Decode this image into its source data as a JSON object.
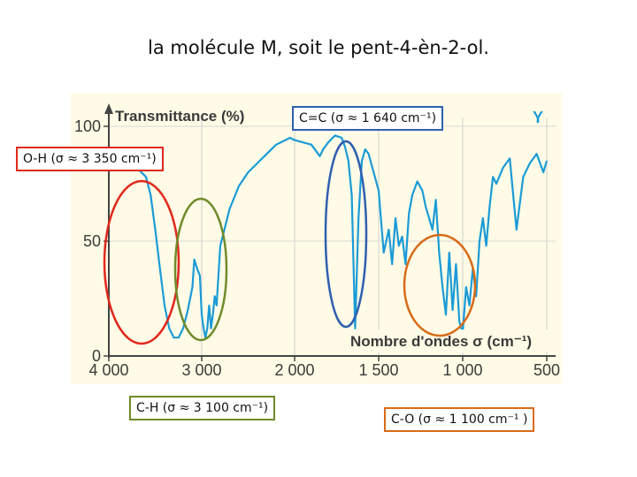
{
  "title": "la molécule M, soit le pent-4-èn-2-ol.",
  "chart_data": {
    "type": "line",
    "title": "",
    "ylabel": "Transmittance (%)",
    "xlabel": "Nombre d'ondes σ (cm⁻¹)",
    "series_label": "Y",
    "x_reversed": true,
    "xlim": [
      4000,
      500
    ],
    "ylim": [
      0,
      100
    ],
    "xticks": [
      4000,
      3000,
      2000,
      1500,
      1000,
      500
    ],
    "xtick_labels": [
      "4 000",
      "3 000",
      "2 000",
      "1 500",
      "1 000",
      "500"
    ],
    "yticks": [
      0,
      50,
      100
    ],
    "ytick_labels": [
      "0",
      "50",
      "100"
    ],
    "line_color": "#1a9bd7",
    "series": [
      {
        "x": [
          4000,
          3850,
          3700,
          3600,
          3550,
          3500,
          3450,
          3400,
          3350,
          3300,
          3250,
          3200,
          3150,
          3100,
          3080,
          3050,
          3020,
          3000,
          2980,
          2960,
          2940,
          2920,
          2900,
          2880,
          2860,
          2840,
          2800,
          2700,
          2600,
          2500,
          2400,
          2300,
          2200,
          2100,
          2050,
          2000,
          1900,
          1850,
          1830,
          1800,
          1760,
          1720,
          1700,
          1680,
          1660,
          1640,
          1620,
          1600,
          1580,
          1560,
          1530,
          1500,
          1470,
          1440,
          1420,
          1400,
          1380,
          1360,
          1340,
          1320,
          1300,
          1270,
          1240,
          1220,
          1200,
          1180,
          1160,
          1140,
          1120,
          1100,
          1080,
          1060,
          1040,
          1020,
          1000,
          980,
          960,
          940,
          920,
          900,
          880,
          860,
          840,
          820,
          800,
          760,
          720,
          680,
          640,
          600,
          560,
          520,
          500
        ],
        "y": [
          88,
          85,
          82,
          78,
          70,
          55,
          38,
          22,
          12,
          8,
          8,
          12,
          20,
          30,
          42,
          38,
          35,
          18,
          12,
          8,
          12,
          22,
          12,
          18,
          26,
          22,
          48,
          64,
          74,
          80,
          84,
          88,
          92,
          94,
          95,
          94,
          92,
          87,
          90,
          93,
          96,
          95,
          91,
          85,
          70,
          12,
          60,
          85,
          90,
          88,
          80,
          72,
          45,
          55,
          40,
          60,
          48,
          52,
          40,
          62,
          70,
          76,
          72,
          65,
          60,
          55,
          68,
          45,
          30,
          18,
          45,
          20,
          40,
          15,
          10,
          30,
          22,
          38,
          26,
          50,
          60,
          48,
          65,
          78,
          75,
          82,
          86,
          55,
          78,
          84,
          88,
          80,
          85
        ]
      }
    ],
    "annotations": [
      {
        "text": "O-H (σ ≈ 3 350 cm⁻¹)",
        "x": 3350,
        "color": "#e0281c"
      },
      {
        "text": "C=C (σ ≈ 1 640 cm⁻¹)",
        "x": 1640,
        "color": "#2f5fb0"
      },
      {
        "text": "C-H (σ ≈ 3 100 cm⁻¹)",
        "x": 3050,
        "color": "#6f8b2a"
      },
      {
        "text": "C-O (σ ≈ 1 100 cm⁻¹ )",
        "x": 1000,
        "color": "#d86b17"
      }
    ]
  }
}
